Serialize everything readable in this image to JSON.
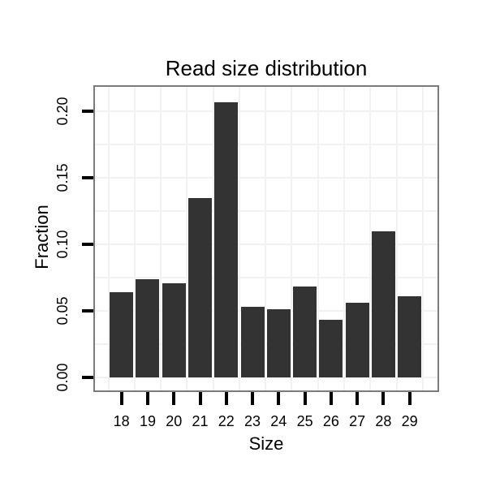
{
  "chart_data": {
    "type": "bar",
    "title": "Read size distribution",
    "xlabel": "Size",
    "ylabel": "Fraction",
    "categories": [
      "18",
      "19",
      "20",
      "21",
      "22",
      "23",
      "24",
      "25",
      "26",
      "27",
      "28",
      "29"
    ],
    "values": [
      0.064,
      0.074,
      0.071,
      0.135,
      0.207,
      0.053,
      0.051,
      0.068,
      0.043,
      0.056,
      0.11,
      0.061
    ],
    "ylim": [
      0,
      0.218
    ],
    "yticks": {
      "values": [
        0,
        0.05,
        0.1,
        0.15,
        0.2
      ],
      "labels": [
        "0.00",
        "0.05",
        "0.10",
        "0.15",
        "0.20"
      ]
    },
    "grid": {
      "shown": true,
      "h_step": 0.025
    },
    "legend_position": "none",
    "colors": {
      "bar": "#333333",
      "panel_border": "#7b7b7b",
      "gridline": "#f2f2f2",
      "axis_tick": "#000000",
      "text": "#000000",
      "background": "#ffffff"
    }
  }
}
